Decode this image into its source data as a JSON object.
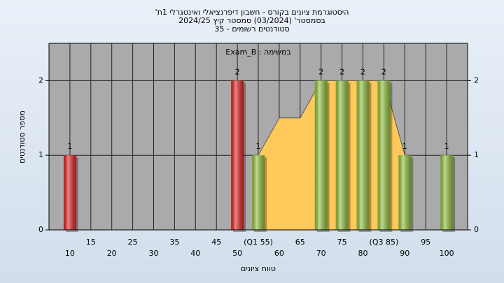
{
  "chart_data": {
    "type": "histogram",
    "title": [
      "היסטוגרמת ציונים בקורס - חשבון דיפרנציאלי ואינטגרלי 1ת'",
      "בסמסטר' (03/2024) סמסטר קיץ 2024/25",
      "סטודנטים רשומים - 35"
    ],
    "annotation": "במשימה : Exam_B",
    "x_label": "טווח ציונים",
    "y_label": "מספר סטודנטים",
    "series": [
      {
        "type": "area",
        "color": "#ffc85a",
        "x": [
          55,
          60,
          65,
          70,
          75,
          80,
          85,
          90
        ],
        "values": [
          1,
          1.5,
          1.5,
          2,
          2,
          2,
          2,
          1
        ]
      },
      {
        "type": "bar",
        "colors": [
          "#e02020",
          "#e02020",
          "#8fbf3a",
          "#8fbf3a",
          "#8fbf3a",
          "#8fbf3a",
          "#8fbf3a",
          "#8fbf3a",
          "#8fbf3a"
        ],
        "x": [
          10,
          50,
          55,
          70,
          75,
          80,
          85,
          90,
          100
        ],
        "values": [
          1,
          2,
          1,
          2,
          2,
          2,
          2,
          1,
          1
        ]
      }
    ],
    "xlim": [
      5,
      105
    ],
    "xticks": [
      10,
      15,
      20,
      25,
      30,
      35,
      40,
      45,
      50,
      {
        "value": 55,
        "label": "(Q1 55)"
      },
      60,
      65,
      70,
      75,
      80,
      {
        "value": 85,
        "label": "(Q3 85)"
      },
      90,
      95,
      100
    ],
    "ylim": [
      0,
      2.5
    ],
    "yticks": [
      0,
      1,
      2
    ],
    "grid": true,
    "plot_color": "#aaaaaa"
  }
}
